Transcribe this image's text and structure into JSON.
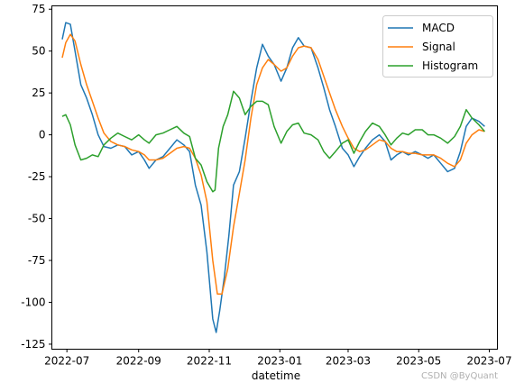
{
  "chart_data": {
    "type": "line",
    "xlabel": "datetime",
    "ylabel": "",
    "title": "",
    "xlim": [
      "2022-06-18",
      "2023-07-08"
    ],
    "ylim": [
      -128,
      77
    ],
    "yticks": [
      75,
      50,
      25,
      0,
      -25,
      -50,
      -75,
      -100,
      -125
    ],
    "xticks": [
      "2022-07",
      "2022-09",
      "2022-11",
      "2023-01",
      "2023-03",
      "2023-05",
      "2023-07"
    ],
    "legend_position": "top-right",
    "series": [
      {
        "name": "MACD",
        "color": "#1f77b4",
        "points": [
          [
            "2022-06-27",
            57
          ],
          [
            "2022-06-30",
            67
          ],
          [
            "2022-07-04",
            66
          ],
          [
            "2022-07-08",
            50
          ],
          [
            "2022-07-13",
            30
          ],
          [
            "2022-07-18",
            22
          ],
          [
            "2022-07-23",
            12
          ],
          [
            "2022-07-28",
            0
          ],
          [
            "2022-08-02",
            -7
          ],
          [
            "2022-08-08",
            -8
          ],
          [
            "2022-08-14",
            -6
          ],
          [
            "2022-08-20",
            -7
          ],
          [
            "2022-08-26",
            -12
          ],
          [
            "2022-09-01",
            -10
          ],
          [
            "2022-09-06",
            -15
          ],
          [
            "2022-09-10",
            -20
          ],
          [
            "2022-09-16",
            -15
          ],
          [
            "2022-09-22",
            -13
          ],
          [
            "2022-09-28",
            -8
          ],
          [
            "2022-10-04",
            -3
          ],
          [
            "2022-10-10",
            -6
          ],
          [
            "2022-10-15",
            -10
          ],
          [
            "2022-10-20",
            -30
          ],
          [
            "2022-10-25",
            -42
          ],
          [
            "2022-10-30",
            -70
          ],
          [
            "2022-11-04",
            -110
          ],
          [
            "2022-11-07",
            -118
          ],
          [
            "2022-11-10",
            -105
          ],
          [
            "2022-11-14",
            -85
          ],
          [
            "2022-11-18",
            -60
          ],
          [
            "2022-11-22",
            -30
          ],
          [
            "2022-11-27",
            -22
          ],
          [
            "2022-12-02",
            -2
          ],
          [
            "2022-12-07",
            20
          ],
          [
            "2022-12-12",
            40
          ],
          [
            "2022-12-17",
            54
          ],
          [
            "2022-12-22",
            47
          ],
          [
            "2022-12-27",
            42
          ],
          [
            "2023-01-02",
            32
          ],
          [
            "2023-01-07",
            40
          ],
          [
            "2023-01-12",
            52
          ],
          [
            "2023-01-17",
            58
          ],
          [
            "2023-01-22",
            53
          ],
          [
            "2023-01-28",
            52
          ],
          [
            "2023-02-03",
            40
          ],
          [
            "2023-02-08",
            28
          ],
          [
            "2023-02-13",
            15
          ],
          [
            "2023-02-18",
            5
          ],
          [
            "2023-02-24",
            -8
          ],
          [
            "2023-03-01",
            -12
          ],
          [
            "2023-03-06",
            -19
          ],
          [
            "2023-03-11",
            -13
          ],
          [
            "2023-03-16",
            -8
          ],
          [
            "2023-03-22",
            -3
          ],
          [
            "2023-03-28",
            0
          ],
          [
            "2023-04-02",
            -4
          ],
          [
            "2023-04-07",
            -15
          ],
          [
            "2023-04-12",
            -12
          ],
          [
            "2023-04-17",
            -10
          ],
          [
            "2023-04-22",
            -12
          ],
          [
            "2023-04-28",
            -10
          ],
          [
            "2023-05-04",
            -12
          ],
          [
            "2023-05-09",
            -14
          ],
          [
            "2023-05-14",
            -12
          ],
          [
            "2023-05-20",
            -17
          ],
          [
            "2023-05-26",
            -22
          ],
          [
            "2023-06-01",
            -20
          ],
          [
            "2023-06-06",
            -10
          ],
          [
            "2023-06-11",
            5
          ],
          [
            "2023-06-16",
            10
          ],
          [
            "2023-06-22",
            8
          ],
          [
            "2023-06-27",
            5
          ]
        ]
      },
      {
        "name": "Signal",
        "color": "#ff7f0e",
        "points": [
          [
            "2022-06-27",
            46
          ],
          [
            "2022-06-30",
            55
          ],
          [
            "2022-07-04",
            60
          ],
          [
            "2022-07-08",
            56
          ],
          [
            "2022-07-13",
            42
          ],
          [
            "2022-07-18",
            30
          ],
          [
            "2022-07-23",
            20
          ],
          [
            "2022-07-28",
            10
          ],
          [
            "2022-08-02",
            1
          ],
          [
            "2022-08-08",
            -4
          ],
          [
            "2022-08-14",
            -6
          ],
          [
            "2022-08-20",
            -7
          ],
          [
            "2022-08-26",
            -9
          ],
          [
            "2022-09-01",
            -10
          ],
          [
            "2022-09-06",
            -12
          ],
          [
            "2022-09-10",
            -15
          ],
          [
            "2022-09-16",
            -15
          ],
          [
            "2022-09-22",
            -14
          ],
          [
            "2022-09-28",
            -11
          ],
          [
            "2022-10-04",
            -8
          ],
          [
            "2022-10-10",
            -7
          ],
          [
            "2022-10-15",
            -8
          ],
          [
            "2022-10-20",
            -14
          ],
          [
            "2022-10-25",
            -24
          ],
          [
            "2022-10-30",
            -40
          ],
          [
            "2022-11-04",
            -75
          ],
          [
            "2022-11-08",
            -95
          ],
          [
            "2022-11-12",
            -95
          ],
          [
            "2022-11-17",
            -80
          ],
          [
            "2022-11-22",
            -55
          ],
          [
            "2022-11-27",
            -35
          ],
          [
            "2022-12-02",
            -15
          ],
          [
            "2022-12-07",
            10
          ],
          [
            "2022-12-12",
            30
          ],
          [
            "2022-12-17",
            40
          ],
          [
            "2022-12-22",
            45
          ],
          [
            "2022-12-27",
            42
          ],
          [
            "2023-01-02",
            38
          ],
          [
            "2023-01-07",
            40
          ],
          [
            "2023-01-12",
            47
          ],
          [
            "2023-01-17",
            52
          ],
          [
            "2023-01-22",
            53
          ],
          [
            "2023-01-28",
            52
          ],
          [
            "2023-02-03",
            45
          ],
          [
            "2023-02-08",
            35
          ],
          [
            "2023-02-13",
            25
          ],
          [
            "2023-02-18",
            15
          ],
          [
            "2023-02-24",
            5
          ],
          [
            "2023-03-01",
            -2
          ],
          [
            "2023-03-06",
            -8
          ],
          [
            "2023-03-11",
            -10
          ],
          [
            "2023-03-16",
            -9
          ],
          [
            "2023-03-22",
            -6
          ],
          [
            "2023-03-28",
            -3
          ],
          [
            "2023-04-02",
            -4
          ],
          [
            "2023-04-07",
            -8
          ],
          [
            "2023-04-12",
            -10
          ],
          [
            "2023-04-17",
            -10
          ],
          [
            "2023-04-22",
            -11
          ],
          [
            "2023-04-28",
            -11
          ],
          [
            "2023-05-04",
            -12
          ],
          [
            "2023-05-09",
            -12
          ],
          [
            "2023-05-14",
            -12
          ],
          [
            "2023-05-20",
            -14
          ],
          [
            "2023-05-26",
            -17
          ],
          [
            "2023-06-01",
            -19
          ],
          [
            "2023-06-06",
            -15
          ],
          [
            "2023-06-11",
            -5
          ],
          [
            "2023-06-16",
            0
          ],
          [
            "2023-06-22",
            3
          ],
          [
            "2023-06-27",
            2
          ]
        ]
      },
      {
        "name": "Histogram",
        "color": "#2ca02c",
        "points": [
          [
            "2022-06-27",
            11
          ],
          [
            "2022-06-30",
            12
          ],
          [
            "2022-07-04",
            6
          ],
          [
            "2022-07-08",
            -6
          ],
          [
            "2022-07-13",
            -15
          ],
          [
            "2022-07-18",
            -14
          ],
          [
            "2022-07-23",
            -12
          ],
          [
            "2022-07-28",
            -13
          ],
          [
            "2022-08-02",
            -6
          ],
          [
            "2022-08-08",
            -2
          ],
          [
            "2022-08-14",
            1
          ],
          [
            "2022-08-20",
            -1
          ],
          [
            "2022-08-26",
            -3
          ],
          [
            "2022-09-01",
            0
          ],
          [
            "2022-09-06",
            -3
          ],
          [
            "2022-09-10",
            -5
          ],
          [
            "2022-09-16",
            0
          ],
          [
            "2022-09-22",
            1
          ],
          [
            "2022-09-28",
            3
          ],
          [
            "2022-10-04",
            5
          ],
          [
            "2022-10-10",
            1
          ],
          [
            "2022-10-15",
            -1
          ],
          [
            "2022-10-20",
            -14
          ],
          [
            "2022-10-25",
            -18
          ],
          [
            "2022-10-30",
            -28
          ],
          [
            "2022-11-04",
            -34
          ],
          [
            "2022-11-06",
            -33
          ],
          [
            "2022-11-09",
            -8
          ],
          [
            "2022-11-13",
            5
          ],
          [
            "2022-11-17",
            12
          ],
          [
            "2022-11-22",
            26
          ],
          [
            "2022-11-27",
            22
          ],
          [
            "2022-12-02",
            12
          ],
          [
            "2022-12-07",
            17
          ],
          [
            "2022-12-12",
            20
          ],
          [
            "2022-12-17",
            20
          ],
          [
            "2022-12-22",
            18
          ],
          [
            "2022-12-27",
            5
          ],
          [
            "2023-01-02",
            -5
          ],
          [
            "2023-01-07",
            2
          ],
          [
            "2023-01-12",
            6
          ],
          [
            "2023-01-17",
            7
          ],
          [
            "2023-01-22",
            1
          ],
          [
            "2023-01-28",
            0
          ],
          [
            "2023-02-03",
            -3
          ],
          [
            "2023-02-08",
            -10
          ],
          [
            "2023-02-13",
            -14
          ],
          [
            "2023-02-18",
            -10
          ],
          [
            "2023-02-24",
            -5
          ],
          [
            "2023-03-01",
            -3
          ],
          [
            "2023-03-06",
            -11
          ],
          [
            "2023-03-11",
            -4
          ],
          [
            "2023-03-16",
            2
          ],
          [
            "2023-03-22",
            7
          ],
          [
            "2023-03-28",
            5
          ],
          [
            "2023-04-02",
            0
          ],
          [
            "2023-04-07",
            -6
          ],
          [
            "2023-04-12",
            -2
          ],
          [
            "2023-04-17",
            1
          ],
          [
            "2023-04-22",
            0
          ],
          [
            "2023-04-28",
            3
          ],
          [
            "2023-05-04",
            3
          ],
          [
            "2023-05-09",
            0
          ],
          [
            "2023-05-14",
            0
          ],
          [
            "2023-05-20",
            -2
          ],
          [
            "2023-05-26",
            -5
          ],
          [
            "2023-06-01",
            -1
          ],
          [
            "2023-06-06",
            5
          ],
          [
            "2023-06-11",
            15
          ],
          [
            "2023-06-16",
            10
          ],
          [
            "2023-06-22",
            6
          ],
          [
            "2023-06-27",
            2
          ]
        ]
      }
    ]
  },
  "watermark": "CSDN @ByQuant"
}
